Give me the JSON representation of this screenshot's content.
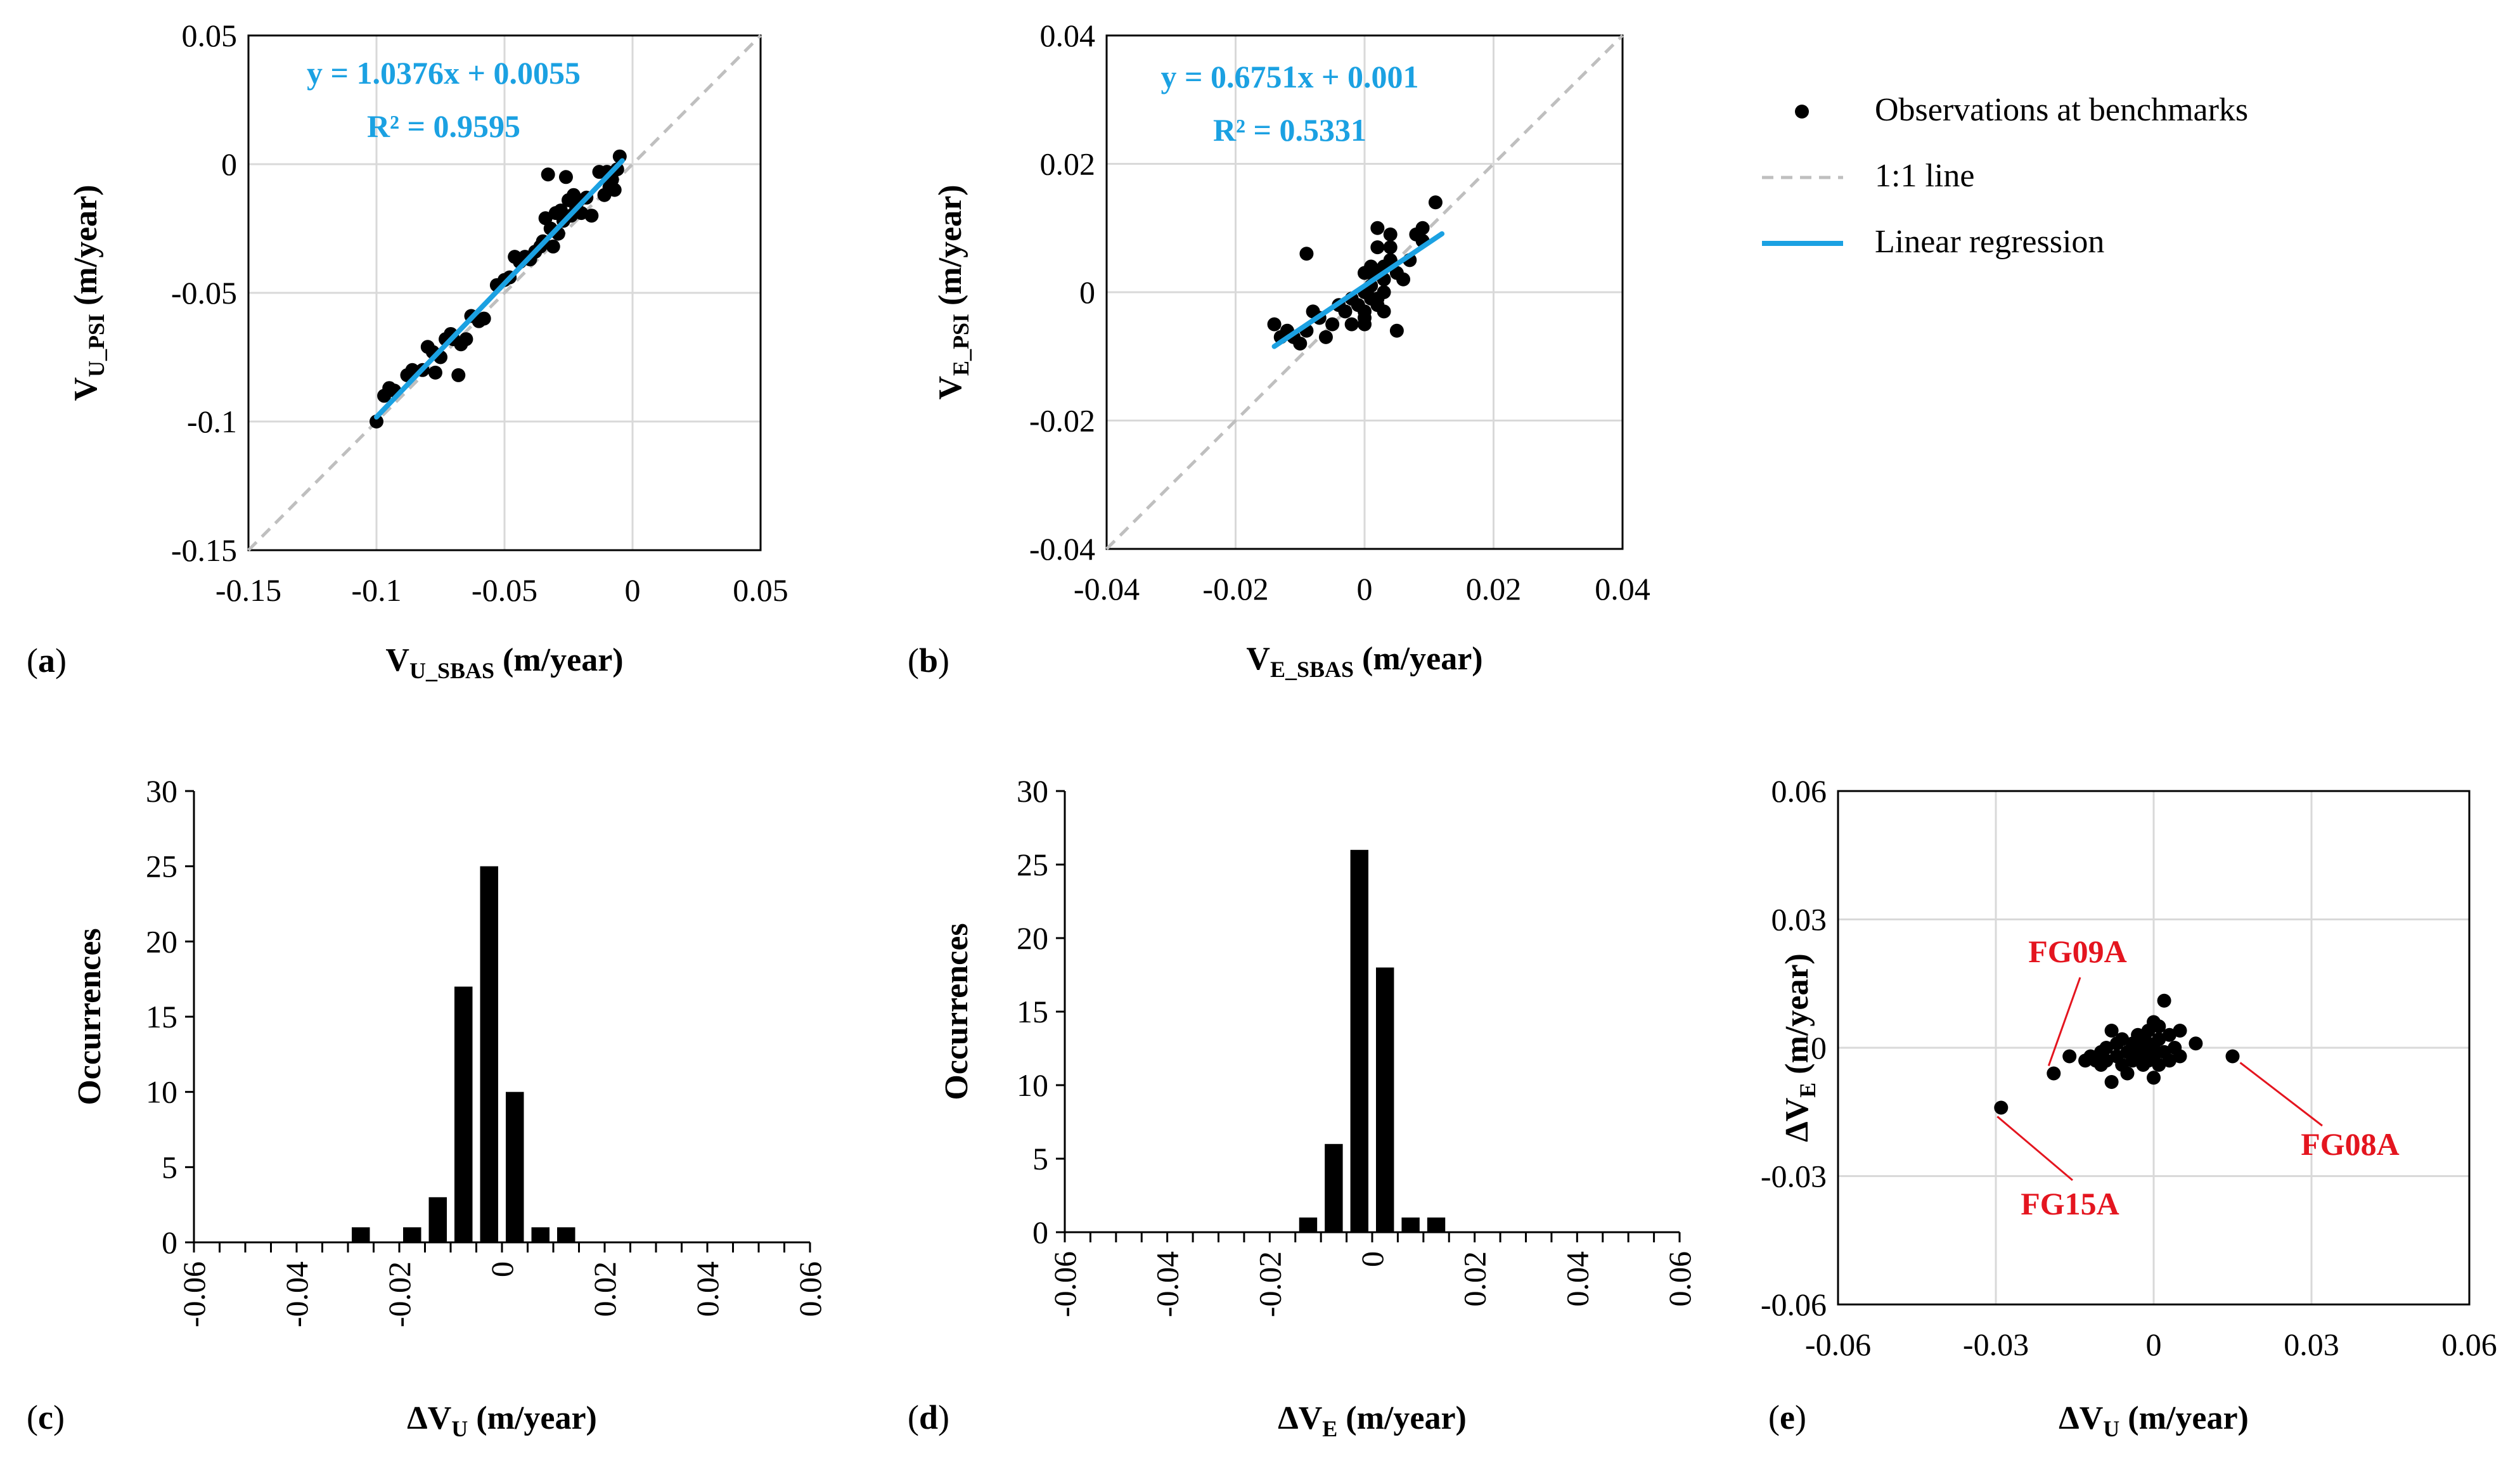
{
  "chart_data": [
    {
      "panel": "(a)",
      "type": "scatter",
      "xlabel": "V",
      "xlabel_sub": "U_SBAS",
      "xlabel_unit": "(m/year)",
      "ylabel": "V",
      "ylabel_sub": "U_PSI",
      "ylabel_unit": "(m/year)",
      "xlim": [
        -0.15,
        0.05
      ],
      "ylim": [
        -0.15,
        0.05
      ],
      "xticks": [
        "-0.15",
        "-0.1",
        "-0.05",
        "0",
        "0.05"
      ],
      "yticks": [
        "-0.15",
        "-0.1",
        "-0.05",
        "0",
        "0.05"
      ],
      "grid": true,
      "equation": "y = 1.0376x + 0.0055",
      "r2": "R² = 0.9595",
      "regression": {
        "slope": 1.0376,
        "intercept": 0.0055,
        "x_range": [
          -0.1,
          -0.004
        ]
      },
      "identity_line": true,
      "points": [
        [
          -0.1,
          -0.1
        ],
        [
          -0.097,
          -0.09
        ],
        [
          -0.095,
          -0.087
        ],
        [
          -0.093,
          -0.088
        ],
        [
          -0.088,
          -0.082
        ],
        [
          -0.086,
          -0.08
        ],
        [
          -0.082,
          -0.08
        ],
        [
          -0.08,
          -0.071
        ],
        [
          -0.078,
          -0.073
        ],
        [
          -0.077,
          -0.081
        ],
        [
          -0.075,
          -0.075
        ],
        [
          -0.073,
          -0.068
        ],
        [
          -0.071,
          -0.066
        ],
        [
          -0.07,
          -0.068
        ],
        [
          -0.068,
          -0.082
        ],
        [
          -0.067,
          -0.07
        ],
        [
          -0.065,
          -0.068
        ],
        [
          -0.063,
          -0.059
        ],
        [
          -0.06,
          -0.061
        ],
        [
          -0.058,
          -0.06
        ],
        [
          -0.053,
          -0.047
        ],
        [
          -0.05,
          -0.045
        ],
        [
          -0.048,
          -0.044
        ],
        [
          -0.046,
          -0.036
        ],
        [
          -0.044,
          -0.038
        ],
        [
          -0.042,
          -0.036
        ],
        [
          -0.04,
          -0.037
        ],
        [
          -0.038,
          -0.034
        ],
        [
          -0.036,
          -0.032
        ],
        [
          -0.035,
          -0.03
        ],
        [
          -0.034,
          -0.021
        ],
        [
          -0.033,
          -0.004
        ],
        [
          -0.032,
          -0.025
        ],
        [
          -0.031,
          -0.032
        ],
        [
          -0.03,
          -0.019
        ],
        [
          -0.029,
          -0.027
        ],
        [
          -0.028,
          -0.018
        ],
        [
          -0.027,
          -0.022
        ],
        [
          -0.026,
          -0.005
        ],
        [
          -0.025,
          -0.014
        ],
        [
          -0.024,
          -0.02
        ],
        [
          -0.023,
          -0.012
        ],
        [
          -0.022,
          -0.017
        ],
        [
          -0.021,
          -0.014
        ],
        [
          -0.02,
          -0.019
        ],
        [
          -0.018,
          -0.013
        ],
        [
          -0.016,
          -0.02
        ],
        [
          -0.013,
          -0.003
        ],
        [
          -0.011,
          -0.012
        ],
        [
          -0.01,
          -0.003
        ],
        [
          -0.009,
          -0.009
        ],
        [
          -0.008,
          -0.006
        ],
        [
          -0.007,
          -0.01
        ],
        [
          -0.006,
          -0.002
        ],
        [
          -0.005,
          0.003
        ]
      ]
    },
    {
      "panel": "(b)",
      "type": "scatter",
      "xlabel": "V",
      "xlabel_sub": "E_SBAS",
      "xlabel_unit": "(m/year)",
      "ylabel": "V",
      "ylabel_sub": "E_PSI",
      "ylabel_unit": "(m/year)",
      "xlim": [
        -0.04,
        0.04
      ],
      "ylim": [
        -0.04,
        0.04
      ],
      "xticks": [
        "-0.04",
        "-0.02",
        "0",
        "0.02",
        "0.04"
      ],
      "yticks": [
        "-0.04",
        "-0.02",
        "0",
        "0.02",
        "0.04"
      ],
      "grid": true,
      "equation": "y = 0.6751x + 0.001",
      "r2": "R² = 0.5331",
      "regression": {
        "slope": 0.6751,
        "intercept": 0.001,
        "x_range": [
          -0.014,
          0.012
        ]
      },
      "identity_line": true,
      "points": [
        [
          -0.014,
          -0.005
        ],
        [
          -0.013,
          -0.007
        ],
        [
          -0.012,
          -0.006
        ],
        [
          -0.011,
          -0.007
        ],
        [
          -0.01,
          -0.008
        ],
        [
          -0.009,
          -0.006
        ],
        [
          -0.009,
          0.006
        ],
        [
          -0.008,
          -0.003
        ],
        [
          -0.007,
          -0.004
        ],
        [
          -0.006,
          -0.007
        ],
        [
          -0.005,
          -0.005
        ],
        [
          -0.004,
          -0.002
        ],
        [
          -0.003,
          -0.003
        ],
        [
          -0.002,
          -0.001
        ],
        [
          -0.002,
          -0.005
        ],
        [
          -0.001,
          -0.002
        ],
        [
          0.0,
          0.0
        ],
        [
          0.0,
          -0.004
        ],
        [
          0.0,
          0.003
        ],
        [
          0.0,
          -0.005
        ],
        [
          0.001,
          0.003
        ],
        [
          0.001,
          0.004
        ],
        [
          0.001,
          -0.001
        ],
        [
          0.001,
          0.001
        ],
        [
          0.002,
          0.003
        ],
        [
          0.002,
          0.01
        ],
        [
          0.002,
          0.007
        ],
        [
          0.002,
          -0.001
        ],
        [
          0.003,
          0.0
        ],
        [
          0.003,
          0.004
        ],
        [
          0.003,
          -0.003
        ],
        [
          0.003,
          0.002
        ],
        [
          0.004,
          0.009
        ],
        [
          0.004,
          0.007
        ],
        [
          0.004,
          0.005
        ],
        [
          0.005,
          0.003
        ],
        [
          0.005,
          -0.006
        ],
        [
          0.006,
          0.002
        ],
        [
          0.007,
          0.005
        ],
        [
          0.008,
          0.009
        ],
        [
          0.009,
          0.01
        ],
        [
          0.009,
          0.008
        ],
        [
          0.011,
          0.014
        ],
        [
          0.0,
          -0.003
        ],
        [
          0.002,
          -0.002
        ]
      ]
    },
    {
      "panel": "(c)",
      "type": "bar",
      "xlabel": "ΔV",
      "xlabel_sub": "U",
      "xlabel_unit": "(m/year)",
      "ylabel": "Occurrences",
      "xlim": [
        -0.06,
        0.06
      ],
      "ylim": [
        0,
        30
      ],
      "xticks": [
        "-0.06",
        "-0.04",
        "-0.02",
        "0",
        "0.02",
        "0.04",
        "0.06"
      ],
      "yticks": [
        "0",
        "5",
        "10",
        "15",
        "20",
        "25",
        "30"
      ],
      "bin_width": 0.005,
      "bin_centers": [
        -0.0275,
        -0.0175,
        -0.0125,
        -0.0075,
        -0.0025,
        0.0025,
        0.0075,
        0.0125
      ],
      "values": [
        1,
        1,
        3,
        17,
        25,
        10,
        1,
        1
      ]
    },
    {
      "panel": "(d)",
      "type": "bar",
      "xlabel": "ΔV",
      "xlabel_sub": "E",
      "xlabel_unit": "(m/year)",
      "ylabel": "Occurrences",
      "xlim": [
        -0.06,
        0.06
      ],
      "ylim": [
        0,
        30
      ],
      "xticks": [
        "-0.06",
        "-0.04",
        "-0.02",
        "0",
        "0.02",
        "0.04",
        "0.06"
      ],
      "yticks": [
        "0",
        "5",
        "10",
        "15",
        "20",
        "25",
        "30"
      ],
      "bin_width": 0.005,
      "bin_centers": [
        -0.0125,
        -0.0075,
        -0.0025,
        0.0025,
        0.0075,
        0.0125
      ],
      "values": [
        1,
        6,
        26,
        18,
        1,
        1
      ]
    },
    {
      "panel": "(e)",
      "type": "scatter",
      "xlabel": "ΔV",
      "xlabel_sub": "U",
      "xlabel_unit": "(m/year)",
      "ylabel": "ΔV",
      "ylabel_sub": "E",
      "ylabel_unit": "(m/year)",
      "xlim": [
        -0.06,
        0.06
      ],
      "ylim": [
        -0.06,
        0.06
      ],
      "xticks": [
        "-0.06",
        "-0.03",
        "0",
        "0.03",
        "0.06"
      ],
      "yticks": [
        "-0.06",
        "-0.03",
        "0",
        "0.03",
        "0.06"
      ],
      "grid": true,
      "points": [
        [
          -0.029,
          -0.014
        ],
        [
          -0.019,
          -0.006
        ],
        [
          0.015,
          -0.002
        ],
        [
          -0.016,
          -0.002
        ],
        [
          -0.013,
          -0.003
        ],
        [
          -0.012,
          -0.002
        ],
        [
          -0.011,
          -0.003
        ],
        [
          -0.01,
          -0.001
        ],
        [
          -0.01,
          -0.004
        ],
        [
          -0.009,
          0.0
        ],
        [
          -0.009,
          -0.003
        ],
        [
          -0.008,
          -0.008
        ],
        [
          -0.008,
          0.004
        ],
        [
          -0.007,
          -0.002
        ],
        [
          -0.007,
          0.001
        ],
        [
          -0.006,
          -0.004
        ],
        [
          -0.006,
          0.002
        ],
        [
          -0.005,
          -0.001
        ],
        [
          -0.005,
          -0.006
        ],
        [
          -0.004,
          0.001
        ],
        [
          -0.004,
          -0.003
        ],
        [
          -0.003,
          0.003
        ],
        [
          -0.003,
          -0.002
        ],
        [
          -0.003,
          0.0
        ],
        [
          -0.002,
          -0.004
        ],
        [
          -0.002,
          0.002
        ],
        [
          -0.002,
          -0.001
        ],
        [
          -0.001,
          0.001
        ],
        [
          -0.001,
          -0.003
        ],
        [
          -0.001,
          0.004
        ],
        [
          0.0,
          0.006
        ],
        [
          0.0,
          -0.002
        ],
        [
          0.0,
          0.0
        ],
        [
          0.0,
          -0.007
        ],
        [
          0.001,
          0.002
        ],
        [
          0.001,
          -0.004
        ],
        [
          0.001,
          0.005
        ],
        [
          0.002,
          -0.001
        ],
        [
          0.002,
          0.011
        ],
        [
          0.003,
          0.003
        ],
        [
          0.003,
          -0.003
        ],
        [
          0.004,
          0.0
        ],
        [
          0.005,
          -0.002
        ],
        [
          0.005,
          0.004
        ],
        [
          0.008,
          0.001
        ]
      ],
      "annotations": [
        {
          "label": "FG09A",
          "point": [
            -0.019,
            -0.006
          ]
        },
        {
          "label": "FG15A",
          "point": [
            -0.029,
            -0.014
          ]
        },
        {
          "label": "FG08A",
          "point": [
            0.015,
            -0.002
          ]
        }
      ]
    }
  ],
  "legend": {
    "items": [
      "Observations at benchmarks",
      "1:1 line",
      "Linear regression"
    ]
  },
  "colors": {
    "points": "#000000",
    "identity_line": "#BFBFBF",
    "regression": "#1BA1E2",
    "grid": "#D9D9D9",
    "annotation": "#E4151F"
  }
}
